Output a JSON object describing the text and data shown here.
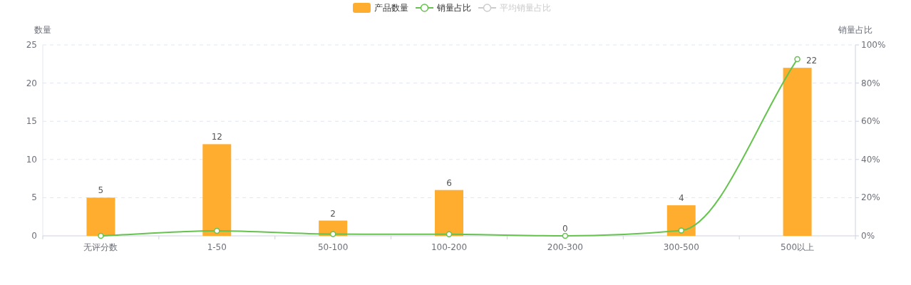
{
  "chart_data": {
    "type": "bar",
    "ylabel": "数量",
    "y2label": "销量占比",
    "categories": [
      "无评分数",
      "1-50",
      "50-100",
      "100-200",
      "200-300",
      "300-500",
      "500以上"
    ],
    "series": [
      {
        "name": "产品数量",
        "color": "#ffad2f",
        "data_labels": true,
        "values": [
          5,
          12,
          2,
          6,
          0,
          4,
          22
        ]
      },
      {
        "name": "销量占比",
        "type": "line",
        "axis": "y2",
        "color": "#66c34f",
        "marker": "circle",
        "values": [
          0,
          2.6,
          0.9,
          0.8,
          0,
          2.8,
          92.5
        ]
      },
      {
        "name": "平均销量占比",
        "type": "line",
        "axis": "y2",
        "color": "#cccccc",
        "marker": "circle",
        "values": [
          null,
          null,
          null,
          null,
          null,
          null,
          null
        ]
      }
    ],
    "ylim": [
      0,
      25
    ],
    "yticks": [
      0,
      5,
      10,
      15,
      20,
      25
    ],
    "y2lim": [
      0,
      100
    ],
    "y2ticks": [
      {
        "value": 0,
        "label": "0%"
      },
      {
        "value": 20,
        "label": "20%"
      },
      {
        "value": 40,
        "label": "40%"
      },
      {
        "value": 60,
        "label": "60%"
      },
      {
        "value": 80,
        "label": "80%"
      },
      {
        "value": 100,
        "label": "100%"
      }
    ],
    "grid": "y",
    "legend": "top"
  }
}
